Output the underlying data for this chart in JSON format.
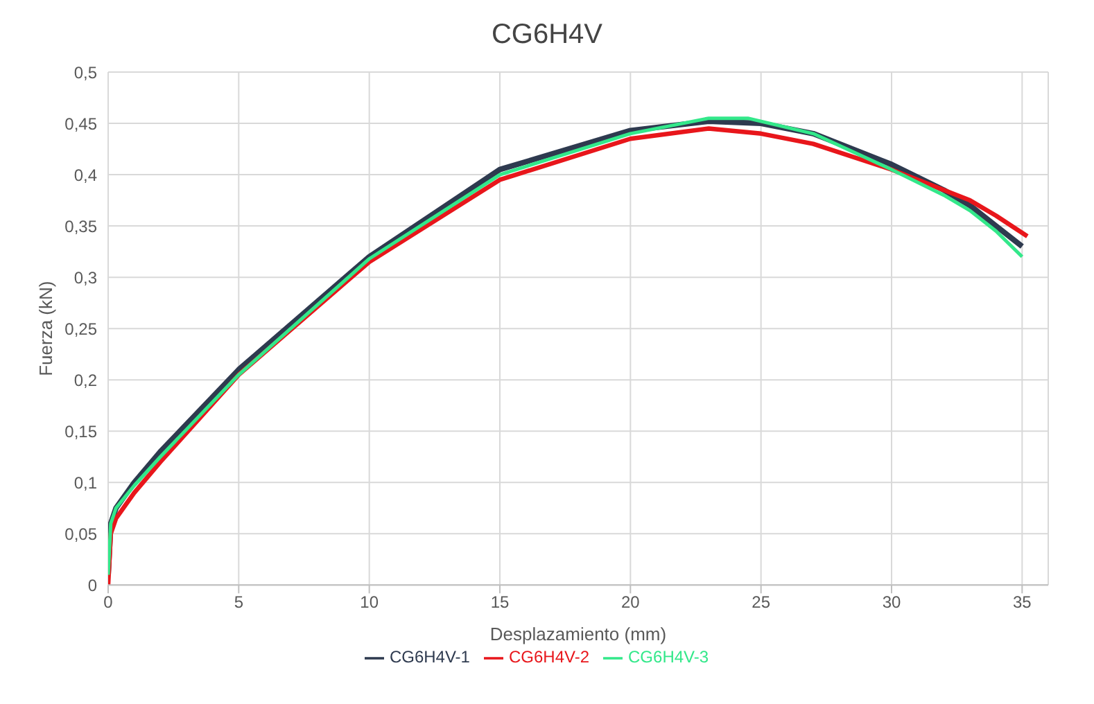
{
  "chart_data": {
    "type": "line",
    "title": "CG6H4V",
    "xlabel": "Desplazamiento (mm)",
    "ylabel": "Fuerza (kN)",
    "xlim": [
      0,
      36
    ],
    "xticks": [
      0,
      5,
      10,
      15,
      20,
      25,
      30,
      35
    ],
    "ylim": [
      0,
      0.5
    ],
    "yticks": [
      0,
      {
        "value": 0.05,
        "label": "0,05"
      },
      {
        "value": 0.1,
        "label": "0,1"
      },
      {
        "value": 0.15,
        "label": "0,15"
      },
      {
        "value": 0.2,
        "label": "0,2"
      },
      {
        "value": 0.25,
        "label": "0,25"
      },
      {
        "value": 0.3,
        "label": "0,3"
      },
      {
        "value": 0.35,
        "label": "0,35"
      },
      {
        "value": 0.4,
        "label": "0,4"
      },
      {
        "value": 0.45,
        "label": "0,45"
      },
      {
        "value": 0.5,
        "label": "0,5"
      }
    ],
    "grid": true,
    "legend": "bottom",
    "marker": "none",
    "line_style": "solid",
    "series": [
      {
        "name": "CG6H4V-1",
        "color": "#2e3a4f",
        "x": [
          0,
          0.1,
          0.3,
          1,
          2,
          5,
          10,
          15,
          20,
          23,
          25,
          27,
          30,
          32,
          33,
          34,
          35
        ],
        "values": [
          0.01,
          0.06,
          0.075,
          0.1,
          0.13,
          0.21,
          0.32,
          0.405,
          0.443,
          0.452,
          0.45,
          0.44,
          0.41,
          0.385,
          0.37,
          0.35,
          0.33
        ]
      },
      {
        "name": "CG6H4V-2",
        "color": "#e8161b",
        "x": [
          0,
          0.1,
          0.3,
          1,
          2,
          5,
          10,
          15,
          20,
          23,
          25,
          27,
          30,
          32,
          33,
          34,
          35.2
        ],
        "values": [
          0,
          0.05,
          0.065,
          0.09,
          0.12,
          0.205,
          0.315,
          0.395,
          0.435,
          0.445,
          0.44,
          0.43,
          0.405,
          0.385,
          0.375,
          0.36,
          0.34
        ]
      },
      {
        "name": "CG6H4V-3",
        "color": "#33e88a",
        "x": [
          0,
          0.1,
          0.3,
          1,
          2,
          5,
          10,
          15,
          20,
          23,
          24.5,
          27,
          30,
          32,
          33,
          34,
          35
        ],
        "values": [
          0.01,
          0.06,
          0.075,
          0.097,
          0.125,
          0.205,
          0.318,
          0.4,
          0.44,
          0.455,
          0.455,
          0.44,
          0.405,
          0.38,
          0.365,
          0.345,
          0.32
        ]
      }
    ]
  }
}
